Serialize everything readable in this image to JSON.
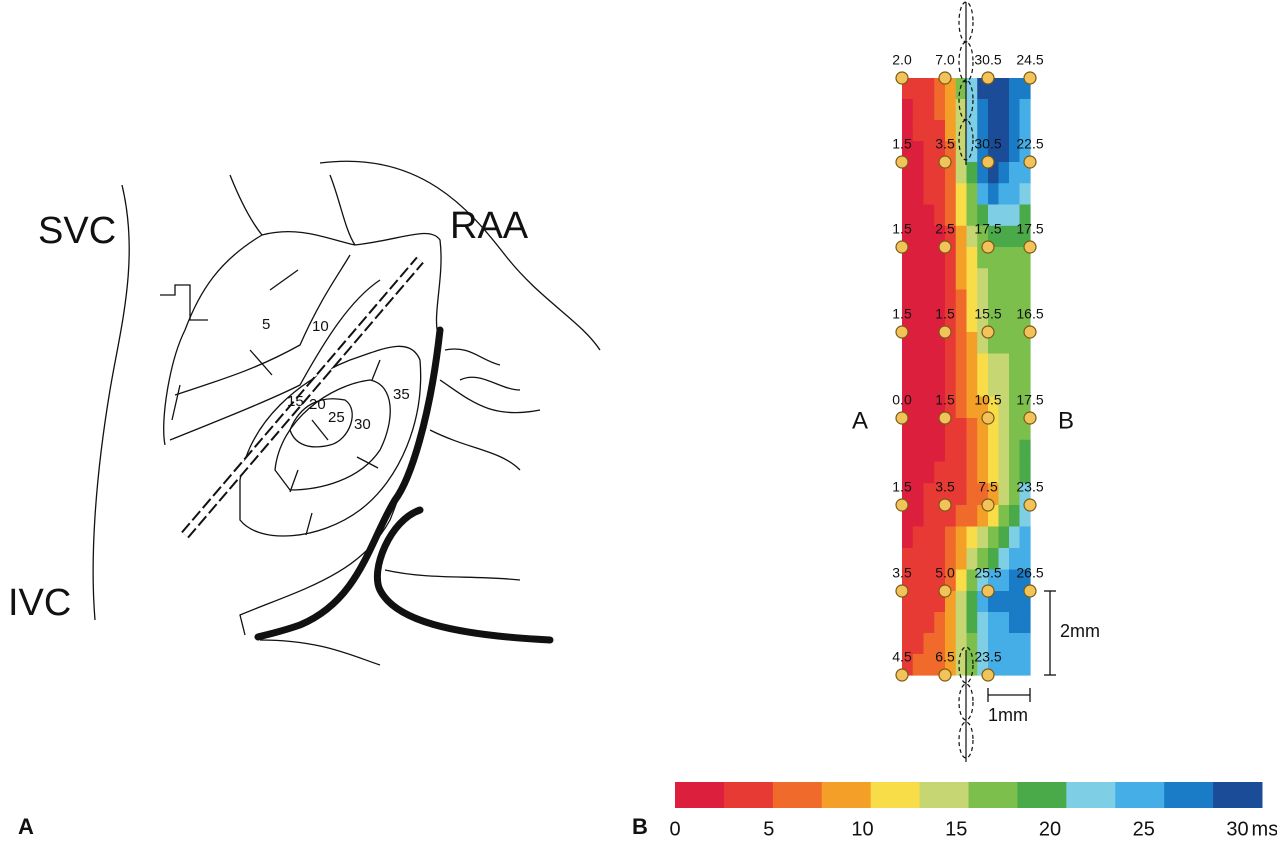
{
  "panel_a": {
    "label": "A",
    "anatomy": [
      "SVC",
      "RAA",
      "IVC"
    ],
    "isochrones": [
      "5",
      "10",
      "15",
      "20",
      "25",
      "30",
      "35"
    ]
  },
  "panel_b": {
    "label": "B",
    "side_labels": [
      "A",
      "B"
    ],
    "grid": [
      [
        "2.0",
        "7.0",
        "30.5",
        "24.5"
      ],
      [
        "1.5",
        "3.5",
        "30.5",
        "22.5"
      ],
      [
        "1.5",
        "2.5",
        "17.5",
        "17.5"
      ],
      [
        "1.5",
        "1.5",
        "15.5",
        "16.5"
      ],
      [
        "0.0",
        "1.5",
        "10.5",
        "17.5"
      ],
      [
        "1.5",
        "3.5",
        "7.5",
        "23.5"
      ],
      [
        "3.5",
        "5.0",
        "25.5",
        "26.5"
      ],
      [
        "4.5",
        "6.5",
        "23.5"
      ]
    ],
    "scale_vertical": "2mm",
    "scale_horizontal": "1mm",
    "colorbar": {
      "ticks": [
        0,
        5,
        10,
        15,
        20,
        25,
        30
      ],
      "unit": "ms",
      "colors": [
        "#dc1f3c",
        "#e83a35",
        "#ef6a2b",
        "#f4a028",
        "#f8dc48",
        "#c5d672",
        "#7dbf4c",
        "#4aa948",
        "#7ecfe6",
        "#46aee6",
        "#1a7cc6",
        "#1b4c98"
      ]
    }
  }
}
